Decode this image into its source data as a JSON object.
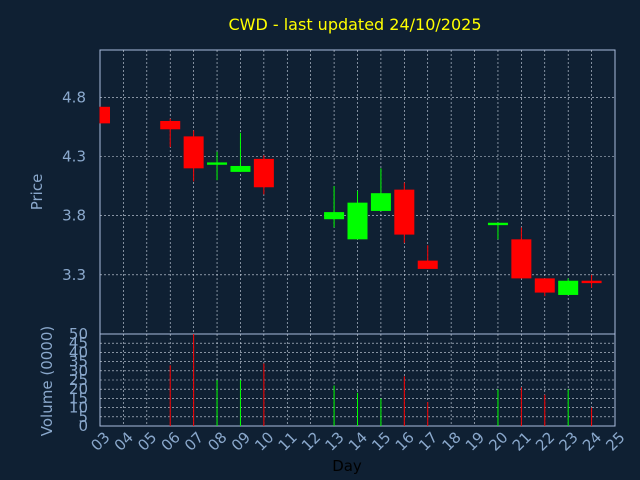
{
  "chart_data": [
    {
      "type": "candlestick",
      "title": "CWD - last updated 24/10/2025",
      "ylabel": "Price",
      "ylim": [
        2.8,
        5.2
      ],
      "yticks": [
        "4.8",
        "4.3",
        "3.8",
        "3.3"
      ],
      "ytick_values": [
        4.8,
        4.3,
        3.8,
        3.3
      ],
      "grid": true,
      "candles": [
        {
          "day": "03",
          "open": 4.72,
          "close": 4.58,
          "high": 4.72,
          "low": 4.58,
          "color": "#ff0000"
        },
        {
          "day": "06",
          "open": 4.6,
          "close": 4.53,
          "high": 4.62,
          "low": 4.38,
          "color": "#ff0000"
        },
        {
          "day": "07",
          "open": 4.47,
          "close": 4.2,
          "high": 4.52,
          "low": 4.09,
          "color": "#ff0000"
        },
        {
          "day": "08",
          "open": 4.23,
          "close": 4.25,
          "high": 4.34,
          "low": 4.1,
          "color": "#00ff00"
        },
        {
          "day": "09",
          "open": 4.17,
          "close": 4.22,
          "high": 4.5,
          "low": 4.17,
          "color": "#00ff00"
        },
        {
          "day": "10",
          "open": 4.28,
          "close": 4.04,
          "high": 4.31,
          "low": 3.98,
          "color": "#ff0000"
        },
        {
          "day": "13",
          "open": 3.77,
          "close": 3.83,
          "high": 4.05,
          "low": 3.7,
          "color": "#00ff00"
        },
        {
          "day": "14",
          "open": 3.6,
          "close": 3.91,
          "high": 4.01,
          "low": 3.6,
          "color": "#00ff00"
        },
        {
          "day": "15",
          "open": 3.84,
          "close": 3.99,
          "high": 4.2,
          "low": 3.84,
          "color": "#00ff00"
        },
        {
          "day": "16",
          "open": 4.02,
          "close": 3.64,
          "high": 4.08,
          "low": 3.57,
          "color": "#ff0000"
        },
        {
          "day": "17",
          "open": 3.42,
          "close": 3.35,
          "high": 3.55,
          "low": 3.35,
          "color": "#ff0000"
        },
        {
          "day": "20",
          "open": 3.72,
          "close": 3.74,
          "high": 3.74,
          "low": 3.6,
          "color": "#00ff00"
        },
        {
          "day": "21",
          "open": 3.6,
          "close": 3.27,
          "high": 3.7,
          "low": 3.27,
          "color": "#ff0000"
        },
        {
          "day": "22",
          "open": 3.27,
          "close": 3.15,
          "high": 3.27,
          "low": 3.12,
          "color": "#ff0000"
        },
        {
          "day": "23",
          "open": 3.13,
          "close": 3.25,
          "high": 3.27,
          "low": 3.13,
          "color": "#00ff00"
        },
        {
          "day": "24",
          "open": 3.25,
          "close": 3.23,
          "high": 3.3,
          "low": 3.19,
          "color": "#ff0000"
        }
      ]
    },
    {
      "type": "bar",
      "ylabel": "Volume (0000)",
      "xlabel": "Day",
      "ylim": [
        0,
        50
      ],
      "yticks": [
        "50",
        "45",
        "40",
        "35",
        "30",
        "25",
        "20",
        "15",
        "10",
        "5",
        "0"
      ],
      "ytick_values": [
        50,
        45,
        40,
        35,
        30,
        25,
        20,
        15,
        10,
        5,
        0
      ],
      "categories": [
        "03",
        "04",
        "05",
        "06",
        "07",
        "08",
        "09",
        "10",
        "11",
        "12",
        "13",
        "14",
        "15",
        "16",
        "17",
        "18",
        "19",
        "20",
        "21",
        "22",
        "23",
        "24",
        "25"
      ],
      "values": [
        0,
        0,
        0,
        33,
        50,
        25,
        25,
        34,
        0,
        0,
        22,
        18,
        15,
        27,
        13,
        0,
        0,
        20,
        21,
        17,
        20,
        10,
        0
      ],
      "bar_colors": [
        "#ff0000",
        "#ff0000",
        "#ff0000",
        "#ff0000",
        "#ff0000",
        "#00ff00",
        "#00ff00",
        "#ff0000",
        "#ff0000",
        "#ff0000",
        "#00ff00",
        "#00ff00",
        "#00ff00",
        "#ff0000",
        "#ff0000",
        "#ff0000",
        "#ff0000",
        "#00ff00",
        "#ff0000",
        "#ff0000",
        "#00ff00",
        "#ff0000",
        "#ff0000"
      ]
    }
  ],
  "colors": {
    "background": "#0f2033",
    "plot_border": "#aabbdd",
    "grid": "#cfd8e6",
    "title": "#ffff00",
    "tick": "#8aa8cc",
    "up": "#00ff00",
    "down": "#ff0000"
  }
}
